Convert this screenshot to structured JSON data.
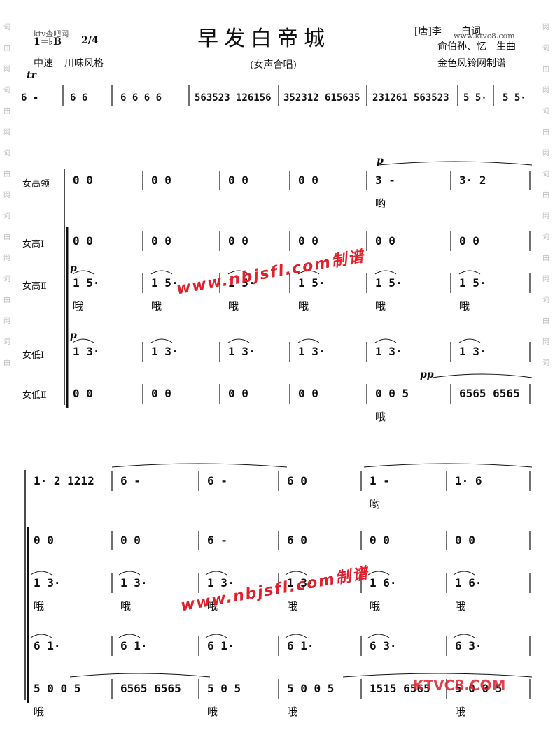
{
  "header": {
    "site_left": "ktv查吧网",
    "key": "1=♭B",
    "time_signature": "2/4",
    "tempo": "中速",
    "style": "川味风格",
    "title": "早发白帝城",
    "subtitle": "(女声合唱)",
    "lyricist": "[唐]李　　白词",
    "site_right": "www.ktvc8.com",
    "composer": "俞伯孙、忆　生曲",
    "maker": "金色风铃网制谱"
  },
  "edge_text": [
    "词",
    "曲",
    "网",
    "词",
    "曲",
    "网",
    "词",
    "曲",
    "网",
    "词",
    "曲",
    "网",
    "词",
    "曲",
    "网",
    "词",
    "曲",
    "网",
    "词",
    "曲",
    "网",
    "词",
    "曲",
    "网",
    "词",
    "曲",
    "网",
    "词",
    "曲",
    "网",
    "词",
    "曲",
    "网",
    "词"
  ],
  "watermark": "www.nbjsfl.com制谱",
  "logo": "KTVC8.COM",
  "intro": {
    "ornament": "tr",
    "notes": [
      "6 -",
      "6  6",
      "6 6  6 6",
      "563523 126156",
      "352312 615635",
      "231261 563523",
      "5 5·",
      "5 5·"
    ]
  },
  "dynamics": {
    "p": "p",
    "pp": "pp"
  },
  "system1": {
    "parts": [
      {
        "label": "女高领",
        "measures": [
          "0  0",
          "0  0",
          "0  0",
          "0  0",
          "3  -",
          "3·  2"
        ],
        "lyrics": [
          "",
          "",
          "",
          "",
          "哟",
          ""
        ]
      },
      {
        "label": "女高Ⅰ",
        "measures": [
          "0  0",
          "0  0",
          "0  0",
          "0  0",
          "0  0",
          "0  0"
        ],
        "lyrics": [
          "",
          "",
          "",
          "",
          "",
          ""
        ]
      },
      {
        "label": "女高Ⅱ",
        "measures": [
          "1  5·",
          "1  5·",
          "1  5·",
          "1  5·",
          "1  5·",
          "1  5·"
        ],
        "lyrics": [
          "哦",
          "哦",
          "哦",
          "哦",
          "哦",
          "哦"
        ]
      },
      {
        "label": "女低Ⅰ",
        "measures": [
          "1  3·",
          "1  3·",
          "1  3·",
          "1  3·",
          "1  3·",
          "1  3·"
        ],
        "lyrics": [
          "",
          "",
          "",
          "",
          "",
          ""
        ]
      },
      {
        "label": "女低Ⅱ",
        "measures": [
          "0  0",
          "0  0",
          "0  0",
          "0  0",
          "0  0 5",
          "6565 6565"
        ],
        "lyrics": [
          "",
          "",
          "",
          "",
          "哦",
          ""
        ]
      }
    ]
  },
  "system2": {
    "parts": [
      {
        "measures": [
          "1·  2  1212",
          "6  -",
          "6  -",
          "6  0",
          "1  -",
          "1·  6"
        ],
        "lyrics": [
          "",
          "",
          "",
          "",
          "哟",
          ""
        ]
      },
      {
        "measures": [
          "0  0",
          "0  0",
          "6  -",
          "6  0",
          "0  0",
          "0  0"
        ],
        "lyrics": [
          "",
          "",
          "",
          "",
          "",
          ""
        ]
      },
      {
        "measures": [
          "1  3·",
          "1  3·",
          "1  3·",
          "1  3·",
          "1  6·",
          "1  6·"
        ],
        "lyrics": [
          "哦",
          "哦",
          "哦",
          "哦",
          "哦",
          "哦"
        ]
      },
      {
        "measures": [
          "6  1·",
          "6  1·",
          "6  1·",
          "6  1·",
          "6  3·",
          "6  3·"
        ],
        "lyrics": [
          "",
          "",
          "",
          "",
          "",
          ""
        ]
      },
      {
        "measures": [
          "5 0  0 5",
          "6565 6565",
          "5 0  5",
          "5 0  0 5",
          "1515 6565",
          "5 0  0 5"
        ],
        "lyrics": [
          "哦",
          "",
          "哦",
          "哦",
          "",
          "哦"
        ]
      }
    ]
  }
}
